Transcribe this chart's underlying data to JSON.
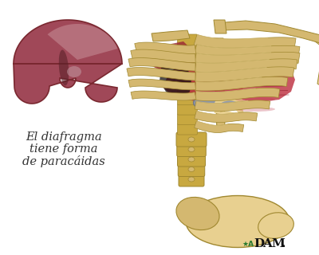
{
  "background_color": "#ffffff",
  "text_line1": "El diafragma",
  "text_line2": "tiene forma",
  "text_line3": "de paracáidas",
  "text_fontsize": 10.5,
  "text_color": "#333333",
  "bone_color": "#d4b870",
  "bone_edge": "#a08830",
  "bone_light": "#e8d090",
  "muscle_red": "#b83040",
  "muscle_dark_red": "#7a1520",
  "muscle_stripe": "#8b1525",
  "tendon_gray": "#9098a8",
  "spine_color": "#c8a840",
  "dark_shadow": "#151010",
  "dome_base": "#a04858",
  "dome_highlight": "#c89098",
  "dome_dark": "#7a2830",
  "fig_width": 4.0,
  "fig_height": 3.2,
  "dpi": 100
}
